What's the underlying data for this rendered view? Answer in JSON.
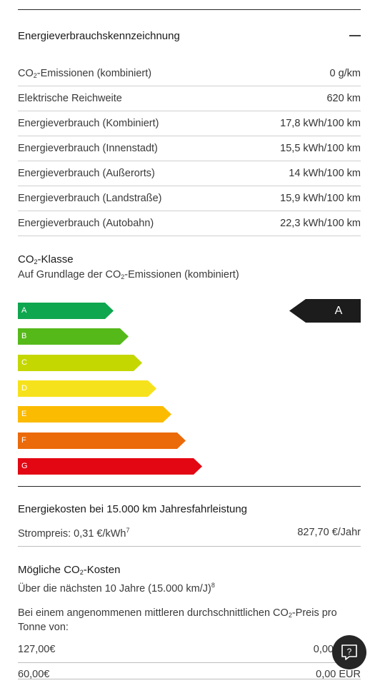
{
  "section": {
    "title": "Energieverbrauchskennzeichnung",
    "collapse_icon": "minus-icon"
  },
  "specs": [
    {
      "label_pre": "CO",
      "label_sub": "2",
      "label_post": "-Emissionen (kombiniert)",
      "value": "0 g/km"
    },
    {
      "label": "Elektrische Reichweite",
      "value": "620 km"
    },
    {
      "label": "Energieverbrauch (Kombiniert)",
      "value": "17,8 kWh/100 km"
    },
    {
      "label": "Energieverbrauch (Innenstadt)",
      "value": "15,5 kWh/100 km"
    },
    {
      "label": "Energieverbrauch (Außerorts)",
      "value": "14 kWh/100 km"
    },
    {
      "label": "Energieverbrauch (Landstraße)",
      "value": "15,9 kWh/100 km"
    },
    {
      "label": "Energieverbrauch (Autobahn)",
      "value": "22,3 kWh/100 km"
    }
  ],
  "co2_class": {
    "title_pre": "CO",
    "title_sub": "2",
    "title_post": "-Klasse",
    "subtitle_pre": "Auf Grundlage der CO",
    "subtitle_sub": "2",
    "subtitle_post": "-Emissionen (kombiniert)",
    "current_class": "A",
    "bars": [
      {
        "label": "A",
        "color": "#0fa650"
      },
      {
        "label": "B",
        "color": "#56b91a"
      },
      {
        "label": "C",
        "color": "#c5d701"
      },
      {
        "label": "D",
        "color": "#f6e21c"
      },
      {
        "label": "E",
        "color": "#fbbb00"
      },
      {
        "label": "F",
        "color": "#eb6a0a"
      },
      {
        "label": "G",
        "color": "#e30613"
      }
    ]
  },
  "energy_costs": {
    "title": "Energiekosten bei 15.000 km Jahresfahrleistung",
    "label": "Strompreis: 0,31 €/kWh",
    "label_sup": "7",
    "value": "827,70 €/Jahr"
  },
  "possible_costs": {
    "title_pre": "Mögliche CO",
    "title_sub": "2",
    "title_post": "-Kosten",
    "subtitle": "Über die nächsten 10 Jahre (15.000 km/J)",
    "subtitle_sup": "8",
    "desc_pre": "Bei einem angenommenen mittleren durchschnittlichen CO",
    "desc_sub": "2",
    "desc_post": "-Preis pro Tonne von:",
    "rows": [
      {
        "price": "127,00€",
        "cost": "0,00"
      },
      {
        "price": "60,00€",
        "cost": "0,00 EUR"
      }
    ]
  },
  "help_button": {
    "icon": "help-chat-icon",
    "label": "?"
  }
}
